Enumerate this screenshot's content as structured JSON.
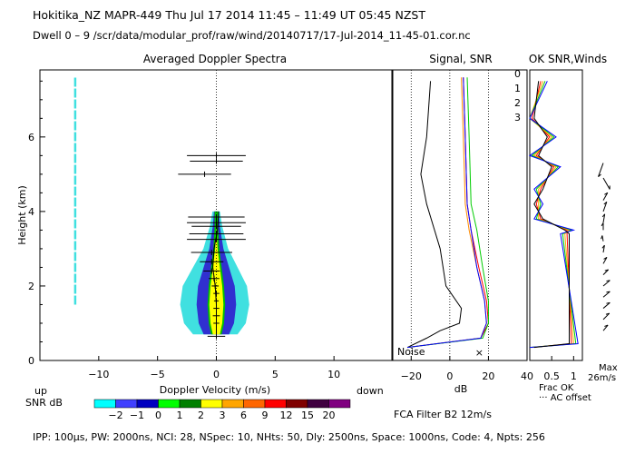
{
  "header": {
    "line1": "Hokitika_NZ   MAPR-449   Thu Jul 17 2014 11:45 – 11:49 UT 05:45 NZST",
    "line2": "Dwell   0 –   9    /scr/data/modular_prof/raw/wind/20140717/17-Jul-2014_11-45-01.cor.nc"
  },
  "footer": {
    "params": "IPP: 100μs,   PW: 2000ns,   NCI:  28,  NSpec: 10, NHts: 50,  Dly: 2500ns,   Space: 1000ns,  Code: 4,  Npts: 256",
    "filter": "FCA Filter B2 12m/s"
  },
  "colorbar": {
    "title": "SNR dB",
    "labels": [
      "−2",
      "−1",
      "0",
      "1",
      "2",
      "3",
      "6",
      "9",
      "12",
      "15",
      "20"
    ],
    "colors": [
      "#00ffff",
      "#4040ff",
      "#0000c0",
      "#00ff00",
      "#008000",
      "#ffff00",
      "#ffa500",
      "#ff6600",
      "#ff0000",
      "#800000",
      "#400040",
      "#800080"
    ]
  },
  "chart_data": [
    {
      "type": "heatmap",
      "title": "Averaged Doppler Spectra",
      "xlabel": "Doppler Velocity (m/s)",
      "ylabel": "Height (km)",
      "x_ticks": [
        "−10",
        "−5",
        "0",
        "5",
        "10"
      ],
      "y_ticks": [
        "0",
        "2",
        "4",
        "6"
      ],
      "xlim": [
        -15,
        15
      ],
      "ylim": [
        0,
        7.8
      ],
      "updown": {
        "up": "up",
        "down": "down"
      },
      "echo_profile": [
        {
          "h": 0.7,
          "halfwidth_cyan": 1.8,
          "halfwidth_yellow": 0.3
        },
        {
          "h": 1.0,
          "halfwidth_cyan": 2.5,
          "halfwidth_yellow": 0.5
        },
        {
          "h": 1.5,
          "halfwidth_cyan": 2.8,
          "halfwidth_yellow": 0.6
        },
        {
          "h": 2.0,
          "halfwidth_cyan": 2.6,
          "halfwidth_yellow": 0.5
        },
        {
          "h": 2.5,
          "halfwidth_cyan": 1.8,
          "halfwidth_yellow": 0.3
        },
        {
          "h": 3.0,
          "halfwidth_cyan": 1.0,
          "halfwidth_yellow": 0.1
        },
        {
          "h": 3.6,
          "halfwidth_cyan": 0.5,
          "halfwidth_yellow": 0.0
        },
        {
          "h": 4.0,
          "halfwidth_cyan": 0.3,
          "halfwidth_yellow": 0.0
        }
      ],
      "mean_velocity": [
        {
          "h": 0.7,
          "v": 0.0
        },
        {
          "h": 1.0,
          "v": 0.0
        },
        {
          "h": 1.5,
          "v": 0.0
        },
        {
          "h": 2.0,
          "v": -0.1
        },
        {
          "h": 2.5,
          "v": -0.3
        },
        {
          "h": 3.0,
          "v": -0.2
        },
        {
          "h": 3.5,
          "v": 0.1
        },
        {
          "h": 4.0,
          "v": 0.2
        },
        {
          "h": 5.0,
          "v": -0.2
        },
        {
          "h": 5.5,
          "v": 0.0
        }
      ],
      "error_bars": [
        {
          "h": 5.5,
          "v": 0.0,
          "w": 5.0
        },
        {
          "h": 5.35,
          "v": 0.0,
          "w": 4.5
        },
        {
          "h": 5.0,
          "v": -1.0,
          "w": 4.5
        },
        {
          "h": 3.85,
          "v": 0.0,
          "w": 4.8
        },
        {
          "h": 3.7,
          "v": 0.0,
          "w": 5.0
        },
        {
          "h": 3.6,
          "v": 0.0,
          "w": 4.2
        },
        {
          "h": 3.4,
          "v": 0.0,
          "w": 4.6
        },
        {
          "h": 3.25,
          "v": 0.0,
          "w": 5.0
        },
        {
          "h": 2.9,
          "v": -0.4,
          "w": 3.5
        },
        {
          "h": 2.65,
          "v": -0.4,
          "w": 2.0
        },
        {
          "h": 2.4,
          "v": -0.4,
          "w": 1.4
        },
        {
          "h": 2.2,
          "v": -0.2,
          "w": 0.9
        },
        {
          "h": 2.0,
          "v": -0.1,
          "w": 0.6
        },
        {
          "h": 1.8,
          "v": 0.0,
          "w": 0.5
        },
        {
          "h": 1.6,
          "v": 0.0,
          "w": 0.4
        },
        {
          "h": 1.4,
          "v": 0.0,
          "w": 0.5
        },
        {
          "h": 1.2,
          "v": 0.0,
          "w": 0.6
        },
        {
          "h": 1.0,
          "v": 0.0,
          "w": 0.5
        },
        {
          "h": 0.65,
          "v": 0.0,
          "w": 1.5
        }
      ],
      "ground_clutter": {
        "v": -12,
        "h_from": 1.5,
        "h_to": 7.6
      }
    },
    {
      "type": "line",
      "title": "Signal, SNR",
      "xlabel": "dB",
      "x_ticks": [
        "−20",
        "0",
        "20",
        "40"
      ],
      "xlim": [
        -30,
        40
      ],
      "noise_label": "Noise",
      "series": [
        {
          "name": "signal",
          "color": "#000000",
          "points": [
            [
              -22,
              0.35
            ],
            [
              -12,
              0.6
            ],
            [
              -5,
              0.8
            ],
            [
              5,
              1.0
            ],
            [
              6,
              1.4
            ],
            [
              -2,
              2.0
            ],
            [
              -5,
              3.0
            ],
            [
              -12,
              4.2
            ],
            [
              -15,
              5.0
            ],
            [
              -12,
              6.0
            ],
            [
              -10,
              7.5
            ]
          ]
        },
        {
          "name": "0",
          "color": "#ff0000",
          "points": [
            [
              -22,
              0.35
            ],
            [
              16,
              0.6
            ],
            [
              20,
              1.0
            ],
            [
              19,
              1.6
            ],
            [
              15,
              2.5
            ],
            [
              11,
              3.5
            ],
            [
              9,
              4.2
            ],
            [
              8,
              6.0
            ],
            [
              7,
              7.6
            ]
          ]
        },
        {
          "name": "1",
          "color": "#ff8c00",
          "points": [
            [
              -22,
              0.35
            ],
            [
              16,
              0.6
            ],
            [
              19,
              1.0
            ],
            [
              18,
              1.6
            ],
            [
              14,
              2.5
            ],
            [
              10,
              3.5
            ],
            [
              8,
              4.2
            ],
            [
              7,
              6.0
            ],
            [
              6,
              7.6
            ]
          ]
        },
        {
          "name": "2",
          "color": "#00cc00",
          "points": [
            [
              -22,
              0.35
            ],
            [
              17,
              0.6
            ],
            [
              20,
              1.0
            ],
            [
              20,
              1.6
            ],
            [
              17,
              2.5
            ],
            [
              14,
              3.5
            ],
            [
              11,
              4.2
            ],
            [
              10,
              6.0
            ],
            [
              9,
              7.6
            ]
          ]
        },
        {
          "name": "3",
          "color": "#0000ff",
          "points": [
            [
              -22,
              0.35
            ],
            [
              16,
              0.6
            ],
            [
              19,
              1.0
            ],
            [
              18,
              1.6
            ],
            [
              14,
              2.5
            ],
            [
              11,
              3.5
            ],
            [
              9,
              4.2
            ],
            [
              8,
              6.0
            ],
            [
              7,
              7.6
            ]
          ]
        }
      ],
      "noise_x": [
        -20,
        0,
        20
      ]
    },
    {
      "type": "line",
      "title": "OK SNR,Winds",
      "x_ticks": [
        "0.5",
        "1"
      ],
      "xlim": [
        0,
        1.2
      ],
      "legend": [
        {
          "label": "0",
          "color": "#ff0000"
        },
        {
          "label": "1",
          "color": "#ffa500"
        },
        {
          "label": "2",
          "color": "#00cc00"
        },
        {
          "label": "3",
          "color": "#0000ff"
        }
      ],
      "xlabel_lines": [
        "Frac OK",
        "··· AC offset"
      ],
      "frac_ok_points": [
        [
          0.1,
          0.35
        ],
        [
          0.9,
          0.45
        ],
        [
          0.9,
          3.4
        ],
        [
          0.8,
          3.5
        ],
        [
          0.3,
          3.8
        ],
        [
          0.1,
          4.2
        ],
        [
          0.3,
          4.6
        ],
        [
          0.5,
          5.2
        ],
        [
          0.2,
          5.5
        ],
        [
          0.4,
          6.0
        ],
        [
          0.1,
          6.5
        ],
        [
          0.2,
          7.5
        ]
      ],
      "max_label": [
        "Max",
        "26m/s"
      ],
      "wind_barbs": [
        {
          "h": 5.3,
          "dir": 200,
          "speed": 1.0
        },
        {
          "h": 4.9,
          "dir": 150,
          "speed": 0.9
        },
        {
          "h": 4.3,
          "dir": 30,
          "speed": 0.6
        },
        {
          "h": 4.0,
          "dir": 20,
          "speed": 0.7
        },
        {
          "h": 3.7,
          "dir": 10,
          "speed": 0.6
        },
        {
          "h": 3.5,
          "dir": 0,
          "speed": 0.5
        },
        {
          "h": 3.2,
          "dir": 350,
          "speed": 0.4
        },
        {
          "h": 2.9,
          "dir": 10,
          "speed": 0.5
        },
        {
          "h": 2.6,
          "dir": 30,
          "speed": 0.5
        },
        {
          "h": 2.3,
          "dir": 45,
          "speed": 0.5
        },
        {
          "h": 2.0,
          "dir": 50,
          "speed": 0.6
        },
        {
          "h": 1.7,
          "dir": 50,
          "speed": 0.6
        },
        {
          "h": 1.4,
          "dir": 50,
          "speed": 0.6
        },
        {
          "h": 1.1,
          "dir": 45,
          "speed": 0.6
        },
        {
          "h": 0.8,
          "dir": 40,
          "speed": 0.5
        }
      ]
    }
  ]
}
